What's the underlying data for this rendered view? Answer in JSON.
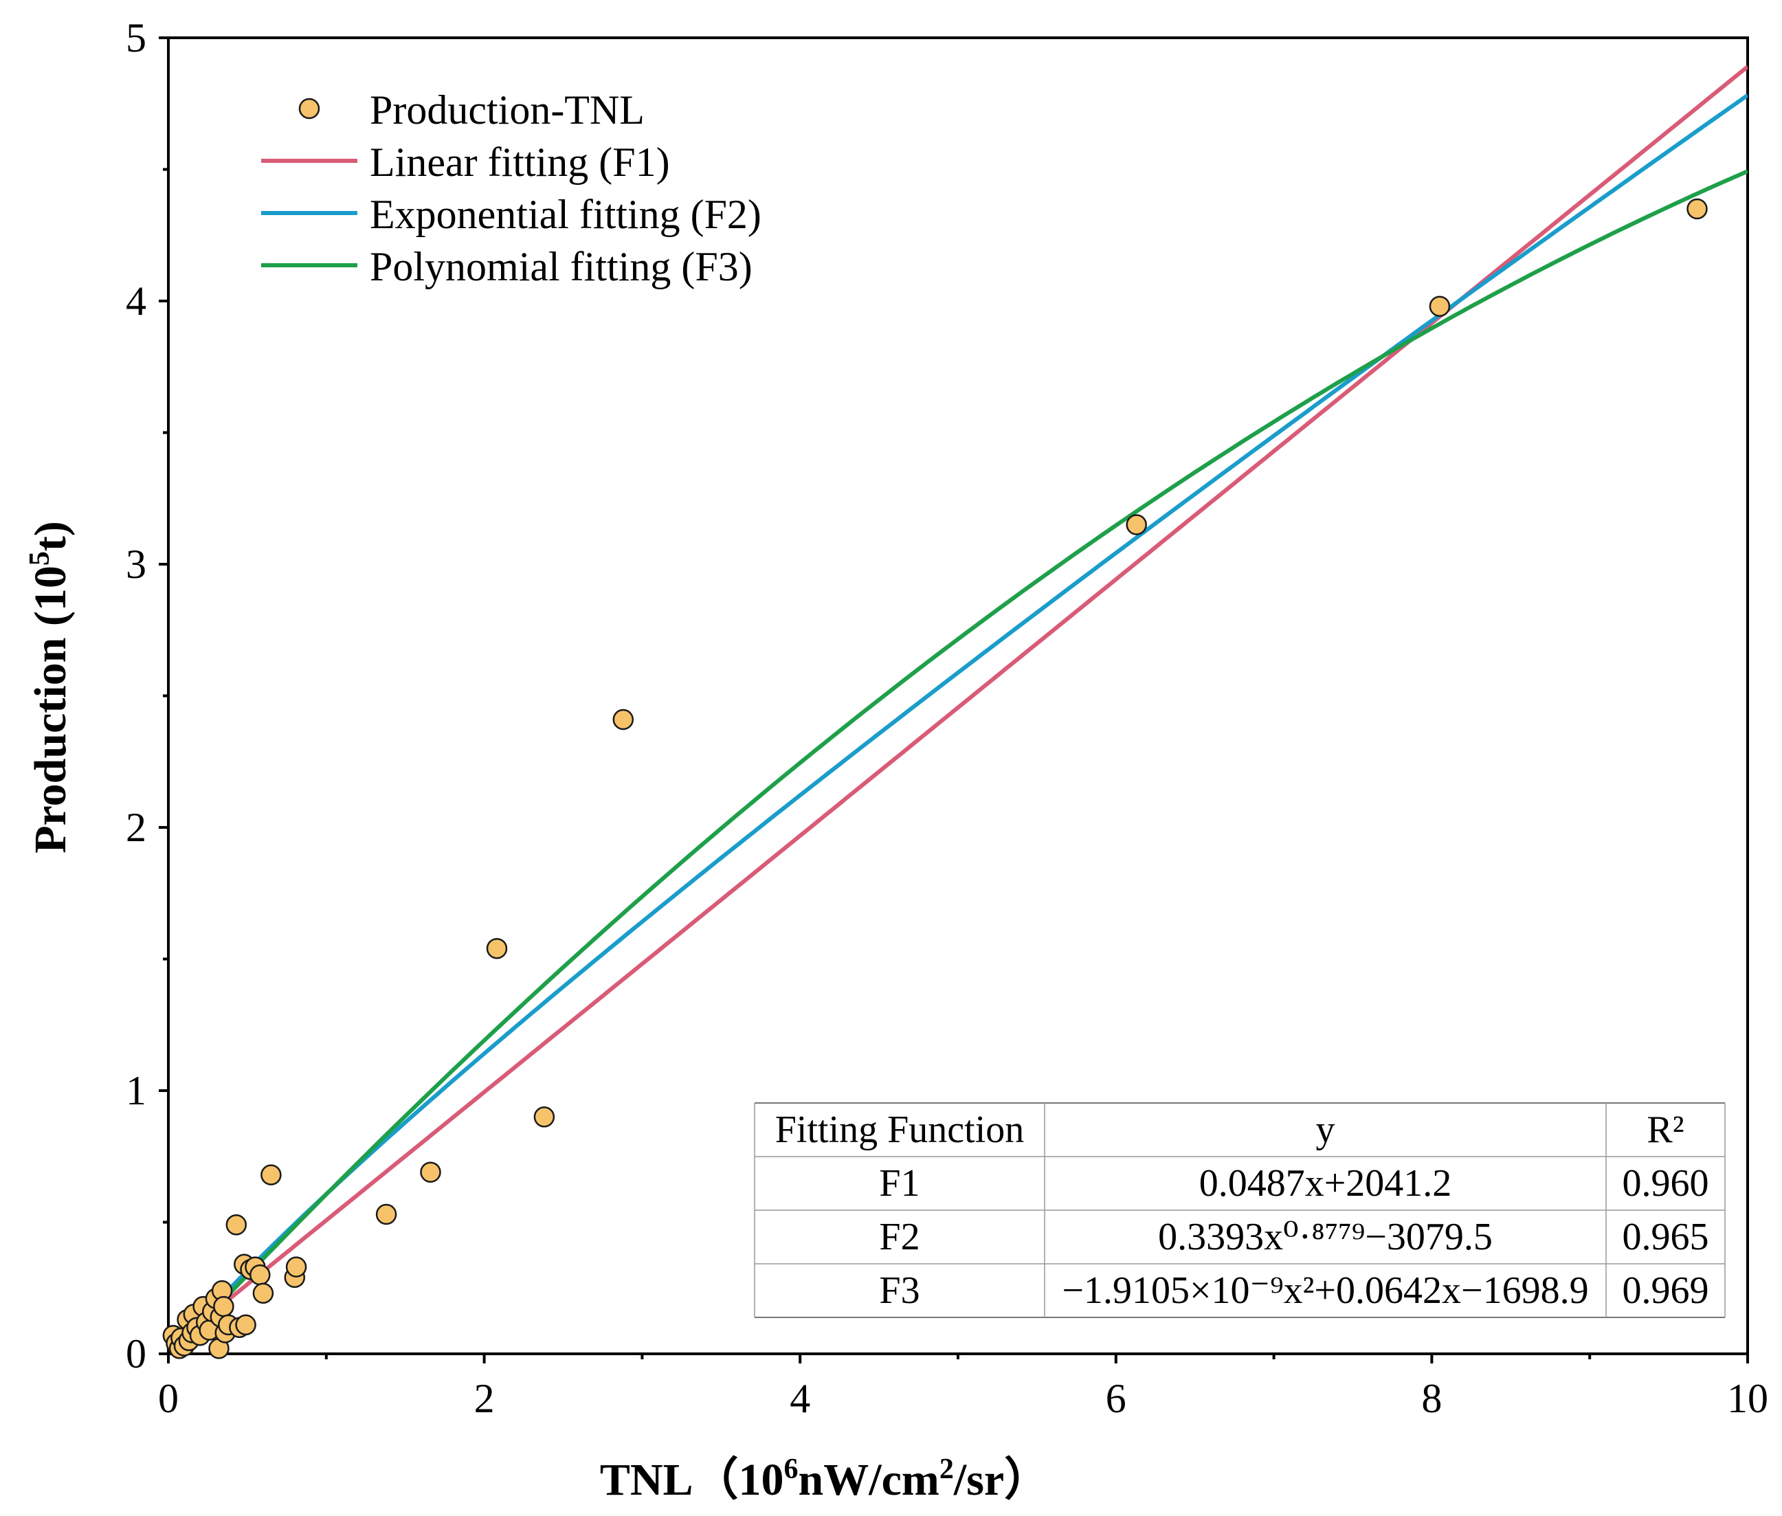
{
  "chart_data": {
    "type": "scatter",
    "title": "",
    "xlabel": "TNL（10^6nW/cm^2/sr）",
    "xlabel_parts": {
      "pre": "TNL（10",
      "sup1": "6",
      "mid": "nW/cm",
      "sup2": "2",
      "post": "/sr）"
    },
    "ylabel": "Production (10^5t)",
    "ylabel_parts": {
      "pre": "Production (10",
      "sup": "5",
      "post": "t)"
    },
    "xlim": [
      0,
      10
    ],
    "ylim": [
      0,
      5
    ],
    "x_ticks": [
      0,
      2,
      4,
      6,
      8,
      10
    ],
    "y_ticks": [
      0,
      1,
      2,
      3,
      4,
      5
    ],
    "x_tick_labels": [
      "0",
      "2",
      "4",
      "6",
      "8",
      "10"
    ],
    "y_tick_labels": [
      "0",
      "1",
      "2",
      "3",
      "4",
      "5"
    ],
    "grid": false,
    "legend_position": "top-left",
    "colors": {
      "points_fill": "#F6C36A",
      "points_stroke": "#1a1a1a",
      "linear": "#D95B77",
      "exponential": "#1A9DCB",
      "polynomial": "#1EA04A"
    },
    "series": [
      {
        "name": "Production-TNL",
        "kind": "scatter",
        "color": "#F6C36A",
        "points": [
          [
            0.03,
            0.07
          ],
          [
            0.05,
            0.04
          ],
          [
            0.07,
            0.02
          ],
          [
            0.08,
            0.06
          ],
          [
            0.1,
            0.03
          ],
          [
            0.12,
            0.13
          ],
          [
            0.13,
            0.05
          ],
          [
            0.15,
            0.08
          ],
          [
            0.16,
            0.15
          ],
          [
            0.18,
            0.1
          ],
          [
            0.2,
            0.07
          ],
          [
            0.22,
            0.18
          ],
          [
            0.24,
            0.12
          ],
          [
            0.26,
            0.09
          ],
          [
            0.28,
            0.16
          ],
          [
            0.3,
            0.21
          ],
          [
            0.32,
            0.02
          ],
          [
            0.33,
            0.14
          ],
          [
            0.34,
            0.24
          ],
          [
            0.35,
            0.18
          ],
          [
            0.36,
            0.08
          ],
          [
            0.38,
            0.11
          ],
          [
            0.43,
            0.49
          ],
          [
            0.45,
            0.1
          ],
          [
            0.48,
            0.34
          ],
          [
            0.49,
            0.11
          ],
          [
            0.52,
            0.32
          ],
          [
            0.55,
            0.33
          ],
          [
            0.58,
            0.3
          ],
          [
            0.6,
            0.23
          ],
          [
            0.65,
            0.68
          ],
          [
            0.8,
            0.29
          ],
          [
            0.81,
            0.33
          ],
          [
            1.38,
            0.53
          ],
          [
            1.66,
            0.69
          ],
          [
            2.08,
            1.54
          ],
          [
            2.38,
            0.9
          ],
          [
            2.88,
            2.41
          ],
          [
            6.13,
            3.15
          ],
          [
            8.05,
            3.98
          ],
          [
            9.68,
            4.35
          ]
        ]
      },
      {
        "name": "Linear fitting (F1)",
        "kind": "line",
        "color": "#D95B77"
      },
      {
        "name": "Exponential fitting (F2)",
        "kind": "line",
        "color": "#1A9DCB"
      },
      {
        "name": "Polynomial fitting (F3)",
        "kind": "line",
        "color": "#1EA04A"
      }
    ],
    "fit_curves": {
      "x_unit_note": "curves evaluated in plot units (TNL 10^6, production 10^5 t)",
      "F1": {
        "form": "y = a*x + b",
        "a": 0.487,
        "b": 0.0204
      },
      "F2": {
        "form": "y = a*x^p + b",
        "a": 0.6375,
        "p": 0.8779,
        "b": -0.0308
      },
      "F3": {
        "form": "y = c2*x^2 + c1*x + c0",
        "c2": -0.0191,
        "c1": 0.642,
        "c0": -0.017
      }
    },
    "table": {
      "headers": [
        "Fitting Function",
        "y",
        "R²"
      ],
      "rows": [
        [
          "F1",
          "0.0487x+2041.2",
          "0.960"
        ],
        [
          "F2",
          "0.3393x⁰·⁸⁷⁷⁹−3079.5",
          "0.965"
        ],
        [
          "F3",
          "−1.9105×10⁻⁹x²+0.0642x−1698.9",
          "0.969"
        ]
      ]
    }
  }
}
